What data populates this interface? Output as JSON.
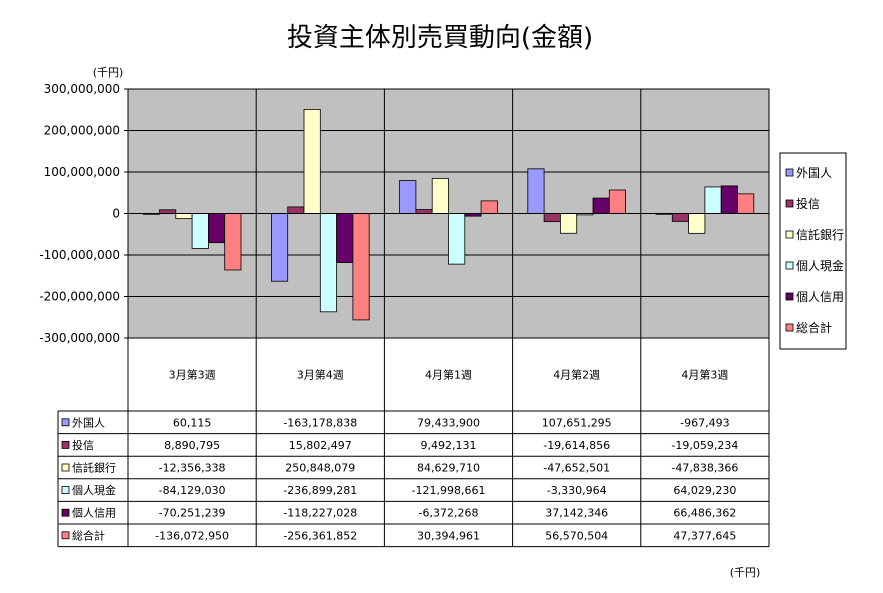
{
  "chart_data": {
    "type": "bar",
    "title": "投資主体別売買動向(金額)",
    "unit_top": "(千円)",
    "unit_bottom": "(千円)",
    "ylim": [
      -300000000,
      300000000
    ],
    "yticks": [
      300000000,
      200000000,
      100000000,
      0,
      -100000000,
      -200000000,
      -300000000
    ],
    "ytick_labels": [
      "300,000,000",
      "200,000,000",
      "100,000,000",
      "0",
      "-100,000,000",
      "-200,000,000",
      "-300,000,000"
    ],
    "grid": true,
    "legend_position": "right",
    "categories": [
      "3月第3週",
      "3月第4週",
      "4月第1週",
      "4月第2週",
      "4月第3週"
    ],
    "series": [
      {
        "name": "外国人",
        "color": "#9999ff",
        "values": [
          60115,
          -163178838,
          79433900,
          107651295,
          -967493
        ],
        "labels": [
          "60,115",
          "-163,178,838",
          "79,433,900",
          "107,651,295",
          "-967,493"
        ]
      },
      {
        "name": "投信",
        "color": "#993366",
        "values": [
          8890795,
          15802497,
          9492131,
          -19614856,
          -19059234
        ],
        "labels": [
          "8,890,795",
          "15,802,497",
          "9,492,131",
          "-19,614,856",
          "-19,059,234"
        ]
      },
      {
        "name": "信託銀行",
        "color": "#ffffcc",
        "values": [
          -12356338,
          250848079,
          84629710,
          -47652501,
          -47838366
        ],
        "labels": [
          "-12,356,338",
          "250,848,079",
          "84,629,710",
          "-47,652,501",
          "-47,838,366"
        ]
      },
      {
        "name": "個人現金",
        "color": "#ccffff",
        "values": [
          -84129030,
          -236899281,
          -121998661,
          -3330964,
          64029230
        ],
        "labels": [
          "-84,129,030",
          "-236,899,281",
          "-121,998,661",
          "-3,330,964",
          "64,029,230"
        ]
      },
      {
        "name": "個人信用",
        "color": "#660066",
        "values": [
          -70251239,
          -118227028,
          -6372268,
          37142346,
          66486362
        ],
        "labels": [
          "-70,251,239",
          "-118,227,028",
          "-6,372,268",
          "37,142,346",
          "66,486,362"
        ]
      },
      {
        "name": "総合計",
        "color": "#ff8080",
        "values": [
          -136072950,
          -256361852,
          30394961,
          56570504,
          47377645
        ],
        "labels": [
          "-136,072,950",
          "-256,361,852",
          "30,394,961",
          "56,570,504",
          "47,377,645"
        ]
      }
    ]
  }
}
